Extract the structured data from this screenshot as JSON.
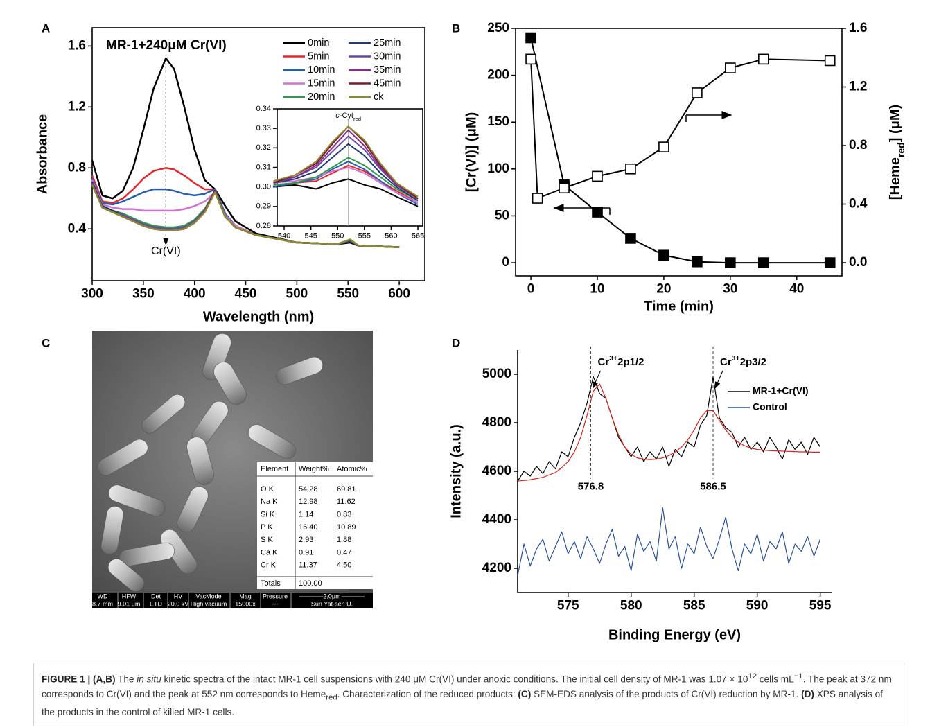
{
  "chart_data": [
    {
      "type": "line",
      "panel": "A",
      "title": "MR-1+240μM Cr(VI)",
      "xlabel": "Wavelength (nm)",
      "ylabel": "Absorbance",
      "frame": true,
      "legend": "upper right",
      "x": [
        300,
        310,
        320,
        330,
        340,
        350,
        360,
        372,
        380,
        390,
        400,
        410,
        420,
        430,
        440,
        460,
        500,
        540,
        552,
        560,
        600
      ],
      "xlim": [
        300,
        625
      ],
      "xticks": [
        300,
        350,
        400,
        450,
        500,
        550,
        600
      ],
      "ylim": [
        0.06,
        1.72
      ],
      "yticks": [
        0.4,
        0.8,
        1.2,
        1.6
      ],
      "series": [
        {
          "name": "0min",
          "color": "#000000",
          "values": [
            0.85,
            0.62,
            0.6,
            0.65,
            0.8,
            1.05,
            1.32,
            1.52,
            1.45,
            1.2,
            0.92,
            0.72,
            0.66,
            0.55,
            0.45,
            0.37,
            0.31,
            0.3,
            0.31,
            0.29,
            0.28
          ]
        },
        {
          "name": "5min",
          "color": "#e8262a",
          "values": [
            0.75,
            0.58,
            0.57,
            0.6,
            0.66,
            0.73,
            0.78,
            0.8,
            0.79,
            0.75,
            0.7,
            0.66,
            0.66,
            0.5,
            0.42,
            0.36,
            0.31,
            0.3,
            0.32,
            0.29,
            0.28
          ]
        },
        {
          "name": "10min",
          "color": "#2660b0",
          "values": [
            0.73,
            0.57,
            0.56,
            0.58,
            0.61,
            0.64,
            0.66,
            0.66,
            0.65,
            0.63,
            0.62,
            0.63,
            0.66,
            0.5,
            0.42,
            0.36,
            0.31,
            0.3,
            0.32,
            0.29,
            0.28
          ]
        },
        {
          "name": "15min",
          "color": "#d56fd8",
          "values": [
            0.72,
            0.56,
            0.54,
            0.53,
            0.53,
            0.52,
            0.52,
            0.52,
            0.52,
            0.53,
            0.55,
            0.58,
            0.64,
            0.49,
            0.42,
            0.36,
            0.31,
            0.3,
            0.32,
            0.29,
            0.28
          ]
        },
        {
          "name": "20min",
          "color": "#2e9a4a",
          "values": [
            0.71,
            0.55,
            0.52,
            0.5,
            0.47,
            0.44,
            0.42,
            0.41,
            0.41,
            0.42,
            0.46,
            0.53,
            0.65,
            0.48,
            0.41,
            0.36,
            0.31,
            0.3,
            0.32,
            0.29,
            0.28
          ]
        },
        {
          "name": "25min",
          "color": "#1f3b73",
          "values": [
            0.71,
            0.55,
            0.52,
            0.49,
            0.46,
            0.43,
            0.41,
            0.4,
            0.4,
            0.41,
            0.45,
            0.52,
            0.65,
            0.48,
            0.41,
            0.36,
            0.31,
            0.3,
            0.32,
            0.29,
            0.28
          ]
        },
        {
          "name": "30min",
          "color": "#6a4aa8",
          "values": [
            0.7,
            0.54,
            0.51,
            0.49,
            0.46,
            0.43,
            0.41,
            0.4,
            0.4,
            0.41,
            0.45,
            0.52,
            0.65,
            0.48,
            0.41,
            0.36,
            0.31,
            0.3,
            0.33,
            0.29,
            0.28
          ]
        },
        {
          "name": "35min",
          "color": "#8e2a8e",
          "values": [
            0.7,
            0.54,
            0.51,
            0.48,
            0.45,
            0.42,
            0.4,
            0.39,
            0.39,
            0.4,
            0.44,
            0.52,
            0.65,
            0.48,
            0.41,
            0.36,
            0.31,
            0.3,
            0.33,
            0.29,
            0.28
          ]
        },
        {
          "name": "45min",
          "color": "#7a1a2a",
          "values": [
            0.69,
            0.54,
            0.51,
            0.48,
            0.45,
            0.42,
            0.4,
            0.39,
            0.39,
            0.4,
            0.44,
            0.51,
            0.65,
            0.48,
            0.41,
            0.36,
            0.31,
            0.3,
            0.33,
            0.29,
            0.28
          ]
        },
        {
          "name": "ck",
          "color": "#8a8a30",
          "values": [
            0.69,
            0.54,
            0.51,
            0.48,
            0.45,
            0.42,
            0.4,
            0.39,
            0.39,
            0.4,
            0.44,
            0.51,
            0.64,
            0.48,
            0.41,
            0.36,
            0.31,
            0.3,
            0.33,
            0.29,
            0.28
          ]
        }
      ],
      "marker_line": {
        "x": 372,
        "label": "Cr(VI)"
      },
      "inset": {
        "frame": true,
        "x": [
          538,
          542,
          546,
          549,
          552,
          555,
          558,
          561,
          565
        ],
        "xlim": [
          538.7,
          565.9
        ],
        "xticks": [
          540,
          545,
          550,
          555,
          560,
          565
        ],
        "ylim": [
          0.28,
          0.34
        ],
        "yticks": [
          0.28,
          0.29,
          {
            "value": 0.3,
            "label": "0.30"
          },
          0.31,
          0.32,
          0.33,
          0.34
        ],
        "peak_x": 552,
        "peak_label": [
          {
            "text": "c",
            "style": "italic"
          },
          {
            "text": "-Cyt"
          },
          {
            "text": "red",
            "style": "sub"
          }
        ],
        "series": [
          {
            "values": [
              0.3,
              0.301,
              0.299,
              0.302,
              0.304,
              0.301,
              0.299,
              0.295,
              0.29
            ]
          },
          {
            "values": [
              0.301,
              0.302,
              0.303,
              0.307,
              0.311,
              0.308,
              0.303,
              0.298,
              0.292
            ]
          },
          {
            "values": [
              0.3,
              0.302,
              0.304,
              0.309,
              0.313,
              0.309,
              0.303,
              0.297,
              0.291
            ]
          },
          {
            "values": [
              0.302,
              0.303,
              0.305,
              0.308,
              0.31,
              0.307,
              0.302,
              0.297,
              0.292
            ]
          },
          {
            "values": [
              0.301,
              0.302,
              0.305,
              0.31,
              0.315,
              0.311,
              0.305,
              0.299,
              0.293
            ]
          },
          {
            "values": [
              0.302,
              0.304,
              0.308,
              0.315,
              0.322,
              0.316,
              0.307,
              0.3,
              0.293
            ]
          },
          {
            "values": [
              0.302,
              0.305,
              0.31,
              0.318,
              0.326,
              0.319,
              0.309,
              0.301,
              0.294
            ]
          },
          {
            "values": [
              0.303,
              0.305,
              0.311,
              0.32,
              0.329,
              0.321,
              0.31,
              0.301,
              0.294
            ]
          },
          {
            "values": [
              0.302,
              0.306,
              0.312,
              0.322,
              0.331,
              0.323,
              0.311,
              0.302,
              0.294
            ]
          },
          {
            "values": [
              0.303,
              0.306,
              0.313,
              0.323,
              0.331,
              0.324,
              0.312,
              0.302,
              0.295
            ]
          }
        ]
      }
    },
    {
      "type": "line",
      "panel": "B",
      "xlabel": "Time (min)",
      "ylabel": "[Cr(VI)] (μM)",
      "y2label": [
        {
          "text": "[Heme"
        },
        {
          "text": "red",
          "style": "sub"
        },
        {
          "text": "] (μM)"
        }
      ],
      "frame": true,
      "xlim": [
        -2.3,
        46.8
      ],
      "xticks": [
        0,
        10,
        20,
        30,
        40
      ],
      "ylim": [
        -14,
        250
      ],
      "yticks": [
        0,
        50,
        100,
        150,
        200,
        250
      ],
      "y2lim": [
        -0.09,
        1.6
      ],
      "y2ticks": [
        {
          "value": 0,
          "label": "0.0"
        },
        0.4,
        0.8,
        1.2,
        1.6
      ],
      "series": [
        {
          "color": "#000000",
          "marker": "filled",
          "x": [
            0,
            5,
            10,
            15,
            20,
            25,
            30,
            35,
            45
          ],
          "values": [
            240,
            83,
            54,
            26,
            8,
            1,
            0,
            0,
            0
          ]
        },
        {
          "color": "#000000",
          "marker": "open",
          "axis": "y2",
          "x": [
            0,
            1,
            5,
            10,
            15,
            20,
            25,
            30,
            35,
            45
          ],
          "values": [
            1.39,
            0.44,
            0.51,
            0.59,
            0.64,
            0.79,
            1.16,
            1.33,
            1.39,
            1.38
          ]
        }
      ]
    },
    {
      "type": "image",
      "panel": "C",
      "table": {
        "header": [
          "Element",
          "Weight%",
          "Atomic%"
        ],
        "rows": [
          [
            "O K",
            "54.28",
            "69.81"
          ],
          [
            "Na K",
            "12.98",
            "11.62"
          ],
          [
            "Si K",
            "1.14",
            "0.83"
          ],
          [
            "P K",
            "16.40",
            "10.89"
          ],
          [
            "S K",
            "2.93",
            "1.88"
          ],
          [
            "Ca K",
            "0.91",
            "0.47"
          ],
          [
            "Cr K",
            "11.37",
            "4.50"
          ]
        ],
        "totals": [
          "Totals",
          "100.00"
        ]
      },
      "info_bar": {
        "labels": [
          "WD",
          "HFW",
          "Det",
          "HV",
          "VacMode",
          "Mag",
          "Pressure"
        ],
        "values": [
          "8.7 mm",
          "9.01 μm",
          "ETD",
          "20.0 kV",
          "High vacuum",
          "15000x",
          "---"
        ],
        "scale": "2.0μm",
        "credit": "Sun Yat-sen U."
      }
    },
    {
      "type": "line",
      "panel": "D",
      "xlabel": "Binding Energy (eV)",
      "ylabel": "Intensity (a.u.)",
      "frame": false,
      "legend": "upper right",
      "x": [
        571,
        571.5,
        572,
        572.5,
        573,
        573.5,
        574,
        574.5,
        575,
        575.5,
        576,
        576.5,
        577,
        577.5,
        578,
        578.5,
        579,
        579.5,
        580,
        580.5,
        581,
        581.5,
        582,
        582.5,
        583,
        583.5,
        584,
        584.5,
        585,
        585.5,
        586,
        586.5,
        587,
        587.5,
        588,
        588.5,
        589,
        589.5,
        590,
        590.5,
        591,
        591.5,
        592,
        592.5,
        593,
        593.5,
        594,
        594.5,
        595
      ],
      "xlim": [
        571,
        595.9
      ],
      "xticks": [
        575,
        580,
        585,
        590,
        595
      ],
      "ylim": [
        4100,
        5100
      ],
      "yticks": [
        4200,
        4400,
        4600,
        4800,
        5000
      ],
      "series": [
        {
          "name": "MR-1+Cr(VI)",
          "color": "#000000",
          "values": [
            4560,
            4600,
            4580,
            4620,
            4590,
            4640,
            4610,
            4680,
            4660,
            4740,
            4800,
            4880,
            4990,
            4920,
            4900,
            4820,
            4740,
            4700,
            4660,
            4700,
            4640,
            4680,
            4650,
            4700,
            4620,
            4690,
            4660,
            4720,
            4700,
            4790,
            4830,
            4990,
            4820,
            4780,
            4760,
            4700,
            4740,
            4690,
            4720,
            4680,
            4740,
            4700,
            4650,
            4730,
            4690,
            4720,
            4670,
            4740,
            4700
          ]
        },
        {
          "name": "Control",
          "color": "#2850a0",
          "values": [
            4170,
            4300,
            4210,
            4280,
            4320,
            4230,
            4290,
            4350,
            4260,
            4310,
            4240,
            4330,
            4280,
            4220,
            4300,
            4360,
            4250,
            4290,
            4190,
            4340,
            4270,
            4310,
            4230,
            4450,
            4280,
            4330,
            4200,
            4300,
            4260,
            4370,
            4290,
            4240,
            4320,
            4410,
            4280,
            4190,
            4300,
            4260,
            4340,
            4230,
            4310,
            4280,
            4350,
            4220,
            4300,
            4270,
            4330,
            4250,
            4320
          ]
        },
        {
          "color": "#e0201b",
          "values": [
            4560,
            4562,
            4565,
            4570,
            4575,
            4585,
            4595,
            4615,
            4640,
            4680,
            4740,
            4830,
            4930,
            4960,
            4900,
            4820,
            4750,
            4700,
            4670,
            4655,
            4650,
            4648,
            4650,
            4655,
            4665,
            4680,
            4700,
            4730,
            4770,
            4820,
            4850,
            4850,
            4810,
            4770,
            4740,
            4720,
            4705,
            4695,
            4690,
            4687,
            4685,
            4684,
            4683,
            4682,
            4681,
            4680,
            4680,
            4679,
            4679
          ]
        }
      ],
      "peaks": [
        {
          "x": 576.8,
          "label": [
            {
              "text": "Cr"
            },
            {
              "text": "3+",
              "style": "sup"
            },
            {
              "text": "2p1/2"
            }
          ]
        },
        {
          "x": 586.5,
          "label": [
            {
              "text": "Cr"
            },
            {
              "text": "3+",
              "style": "sup"
            },
            {
              "text": "2p3/2"
            }
          ]
        }
      ]
    }
  ],
  "caption": [
    {
      "text": "FIGURE 1 | (A,B)",
      "style": "bold"
    },
    {
      "text": " The "
    },
    {
      "text": "in situ",
      "style": "italic"
    },
    {
      "text": " kinetic spectra of the intact MR-1 cell suspensions with 240 μM Cr(VI) under anoxic conditions. The initial cell density of MR-1 was 1.07 × 10"
    },
    {
      "text": "12",
      "style": "sup"
    },
    {
      "text": " cells mL"
    },
    {
      "text": "−1",
      "style": "sup"
    },
    {
      "text": ". The peak at 372 nm corresponds to Cr(VI) and the peak at 552 nm corresponds to Heme"
    },
    {
      "text": "red",
      "style": "sub"
    },
    {
      "text": ". Characterization of the reduced products: "
    },
    {
      "text": "(C)",
      "style": "bold"
    },
    {
      "text": " SEM-EDS analysis of the products of Cr(VI) reduction by MR-1. "
    },
    {
      "text": "(D)",
      "style": "bold"
    },
    {
      "text": " XPS analysis of the products in the control of killed MR-1 cells."
    }
  ]
}
